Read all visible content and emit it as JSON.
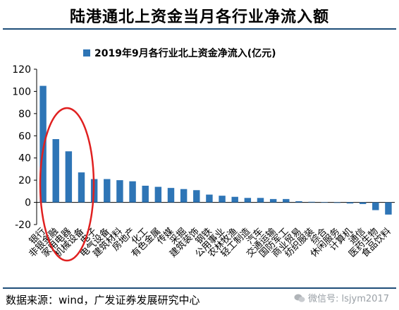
{
  "title": "陆港通北上资金当月各行业净流入额",
  "source": "数据来源：wind，广发证券发展研究中心",
  "watermark": "微信号: lsjym2017",
  "colors": {
    "bar": "#2e75b6",
    "ellipse": "#e02020",
    "rule": "#1f4e79"
  },
  "chart_data": {
    "type": "bar",
    "categories": [
      "银行",
      "非银金融",
      "家用电器",
      "机械设备",
      "电子",
      "电气设备",
      "建筑材料",
      "房地产",
      "化工",
      "有色金属",
      "传媒",
      "采掘",
      "建筑装饰",
      "钢铁",
      "公用事业",
      "农林牧渔",
      "轻工制造",
      "汽车",
      "交通运输",
      "国防军工",
      "商业贸易",
      "纺织服装",
      "综合",
      "休闲服务",
      "计算机",
      "通信",
      "医药生物",
      "食品饮料"
    ],
    "series": [
      {
        "name": "2019年9月各行业北上资金净流入(亿元)",
        "values": [
          105,
          57,
          46,
          27,
          21,
          21,
          20,
          19,
          15,
          14,
          13,
          12,
          11,
          7,
          6,
          5,
          4,
          4,
          3,
          3,
          1,
          0.5,
          0.3,
          -0.5,
          -1,
          -1.5,
          -7,
          -11
        ]
      }
    ],
    "ylim": [
      -20,
      120
    ],
    "yticks": [
      -20,
      0,
      20,
      40,
      60,
      80,
      100,
      120
    ],
    "legend_position": "top-left",
    "grid": false
  }
}
